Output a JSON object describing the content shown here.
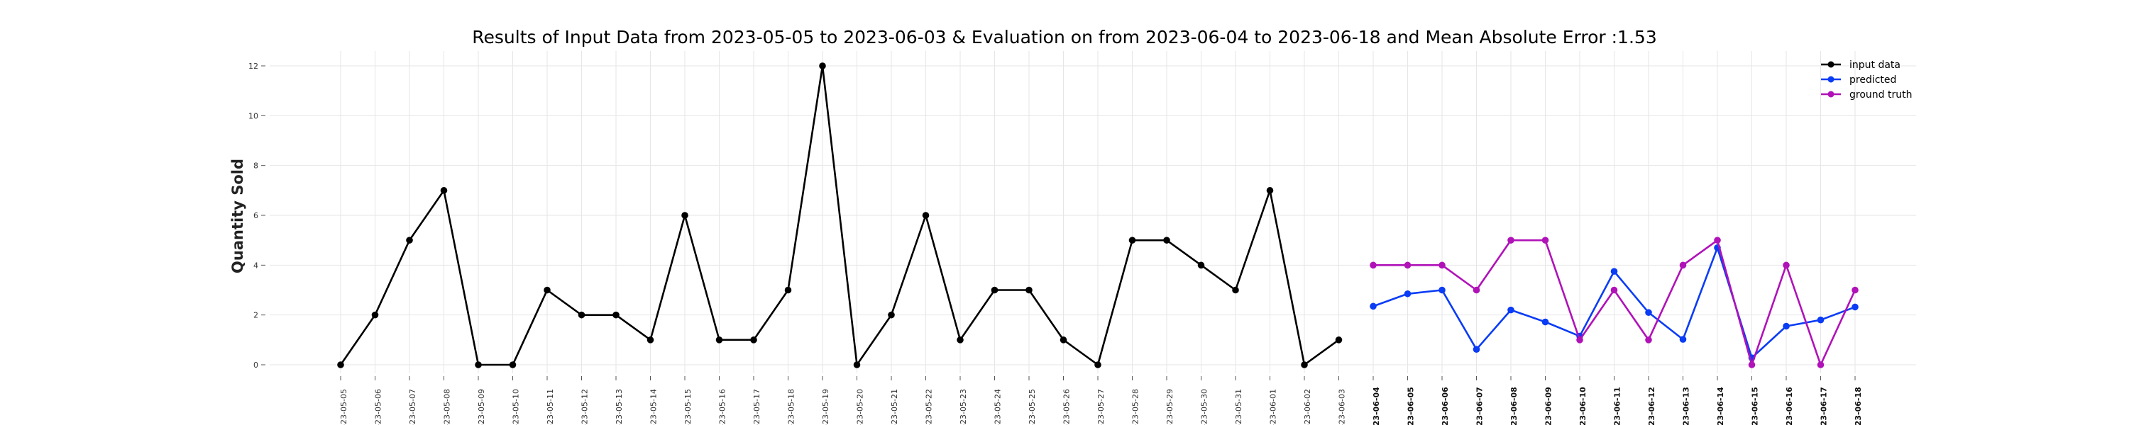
{
  "chart_data": {
    "type": "line",
    "title": "Results of Input Data from 2023-05-05 to 2023-06-03 & Evaluation on from 2023-06-04 to 2023-06-18 and Mean Absolute Error  :1.53",
    "xlabel": "",
    "ylabel": "Quantity Sold",
    "ylim": [
      -0.6,
      12.6
    ],
    "yticks": [
      0,
      2,
      4,
      6,
      8,
      10,
      12
    ],
    "grid": true,
    "legend_position": "top-right",
    "x_tick_labels": [
      "-23-05-05",
      "-23-05-06",
      "-23-05-07",
      "-23-05-08",
      "-23-05-09",
      "-23-05-10",
      "-23-05-11",
      "-23-05-12",
      "-23-05-13",
      "-23-05-14",
      "-23-05-15",
      "-23-05-16",
      "-23-05-17",
      "-23-05-18",
      "-23-05-19",
      "-23-05-20",
      "-23-05-21",
      "-23-05-22",
      "-23-05-23",
      "-23-05-24",
      "-23-05-25",
      "-23-05-26",
      "-23-05-27",
      "-23-05-28",
      "-23-05-29",
      "-23-05-30",
      "-23-05-31",
      "-23-06-01",
      "-23-06-02",
      "-23-06-03",
      "-23-06-04",
      "-23-06-05",
      "-23-06-06",
      "-23-06-07",
      "-23-06-08",
      "-23-06-09",
      "-23-06-10",
      "-23-06-11",
      "-23-06-12",
      "-23-06-13",
      "-23-06-14",
      "-23-06-15",
      "-23-06-16",
      "-23-06-17",
      "-23-06-18"
    ],
    "bold_tick_start_index": 30,
    "series": [
      {
        "name": "input data",
        "color": "#000000",
        "x": [
          "2023-05-05",
          "2023-05-06",
          "2023-05-07",
          "2023-05-08",
          "2023-05-09",
          "2023-05-10",
          "2023-05-11",
          "2023-05-12",
          "2023-05-13",
          "2023-05-14",
          "2023-05-15",
          "2023-05-16",
          "2023-05-17",
          "2023-05-18",
          "2023-05-19",
          "2023-05-20",
          "2023-05-21",
          "2023-05-22",
          "2023-05-23",
          "2023-05-24",
          "2023-05-25",
          "2023-05-26",
          "2023-05-27",
          "2023-05-28",
          "2023-05-29",
          "2023-05-30",
          "2023-05-31",
          "2023-06-01",
          "2023-06-02",
          "2023-06-03"
        ],
        "values": [
          0,
          2,
          5,
          7,
          0,
          0,
          3,
          2,
          2,
          1,
          6,
          1,
          1,
          3,
          12,
          0,
          2,
          6,
          1,
          3,
          3,
          1,
          0,
          5,
          5,
          4,
          3,
          7,
          0,
          1
        ]
      },
      {
        "name": "predicted",
        "color": "#0a3cf5",
        "x": [
          "2023-06-04",
          "2023-06-05",
          "2023-06-06",
          "2023-06-07",
          "2023-06-08",
          "2023-06-09",
          "2023-06-10",
          "2023-06-11",
          "2023-06-12",
          "2023-06-13",
          "2023-06-14",
          "2023-06-15",
          "2023-06-16",
          "2023-06-17",
          "2023-06-18"
        ],
        "values": [
          2.35,
          2.85,
          3.0,
          0.62,
          2.2,
          1.72,
          1.15,
          3.75,
          2.1,
          1.02,
          4.7,
          0.28,
          1.55,
          1.8,
          2.32
        ]
      },
      {
        "name": "ground truth",
        "color": "#b012b8",
        "x": [
          "2023-06-04",
          "2023-06-05",
          "2023-06-06",
          "2023-06-07",
          "2023-06-08",
          "2023-06-09",
          "2023-06-10",
          "2023-06-11",
          "2023-06-12",
          "2023-06-13",
          "2023-06-14",
          "2023-06-15",
          "2023-06-16",
          "2023-06-17",
          "2023-06-18"
        ],
        "values": [
          4,
          4,
          4,
          3,
          5,
          5,
          1,
          3,
          1,
          4,
          5,
          0,
          4,
          0,
          3
        ]
      }
    ]
  }
}
